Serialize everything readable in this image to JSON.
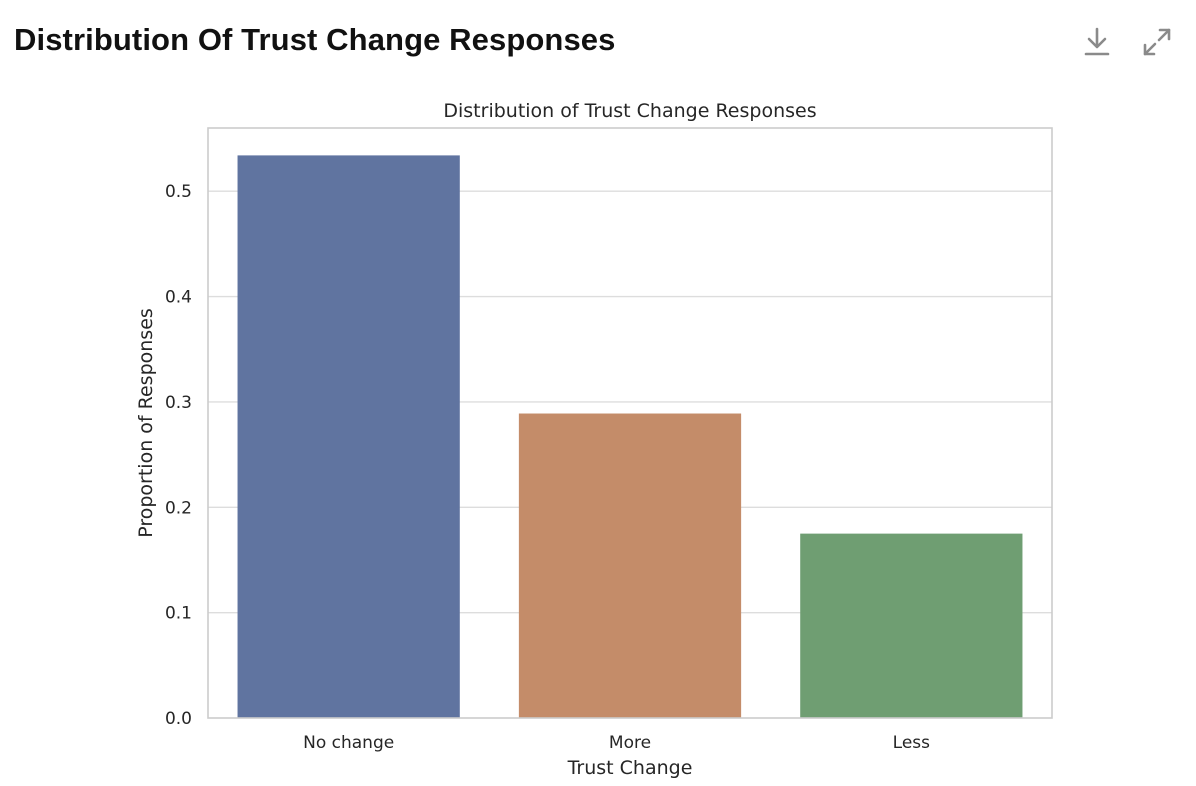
{
  "header": {
    "title": "Distribution Of Trust Change Responses"
  },
  "toolbar": {
    "download_icon": "download-icon",
    "expand_icon": "expand-icon"
  },
  "chart_data": {
    "type": "bar",
    "title": "Distribution of Trust Change Responses",
    "xlabel": "Trust Change",
    "ylabel": "Proportion of Responses",
    "categories": [
      "No change",
      "More",
      "Less"
    ],
    "values": [
      0.534,
      0.289,
      0.175
    ],
    "colors": [
      "#6074a0",
      "#c48c69",
      "#6f9e72"
    ],
    "ylim": [
      0,
      0.56
    ],
    "yticks": [
      0.0,
      0.1,
      0.2,
      0.3,
      0.4,
      0.5
    ],
    "ytick_labels": [
      "0.0",
      "0.1",
      "0.2",
      "0.3",
      "0.4",
      "0.5"
    ],
    "grid": true,
    "legend": "none"
  }
}
